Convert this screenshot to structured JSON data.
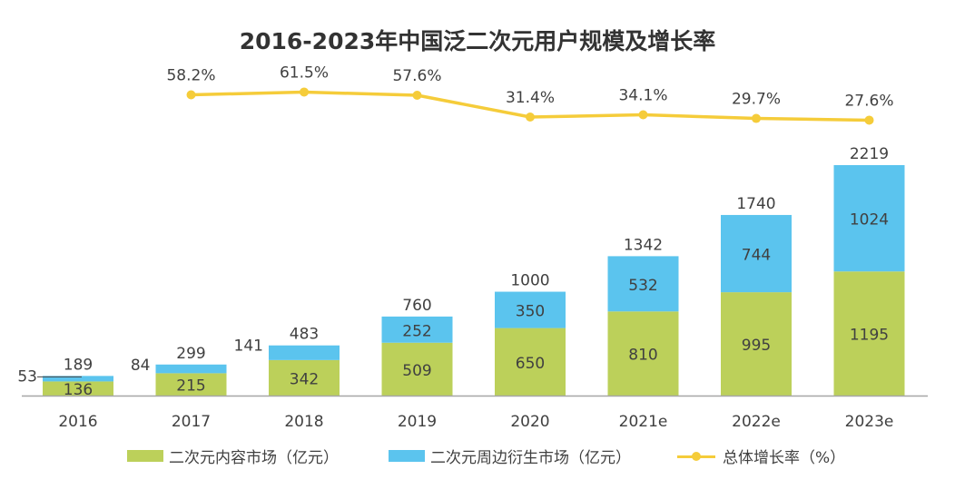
{
  "chart_data": {
    "type": "bar",
    "stacked": true,
    "title": "2016-2023年中国泛二次元用户规模及增长率",
    "categories": [
      "2016",
      "2017",
      "2018",
      "2019",
      "2020",
      "2021e",
      "2022e",
      "2023e"
    ],
    "series": [
      {
        "name": "二次元内容市场（亿元）",
        "kind": "bar",
        "color": "#BCD05A",
        "values": [
          136,
          215,
          342,
          509,
          650,
          810,
          995,
          1195
        ]
      },
      {
        "name": "二次元周边衍生市场（亿元）",
        "kind": "bar",
        "color": "#5BC4EE",
        "values": [
          53,
          84,
          141,
          252,
          350,
          532,
          744,
          1024
        ]
      },
      {
        "name": "总体增长率（%）",
        "kind": "line",
        "color": "#F5CC3A",
        "values": [
          null,
          58.2,
          61.5,
          57.6,
          31.4,
          34.1,
          29.7,
          27.6
        ],
        "labels": [
          "",
          "58.2%",
          "61.5%",
          "57.6%",
          "31.4%",
          "34.1%",
          "29.7%",
          "27.6%"
        ]
      }
    ],
    "totals": [
      189,
      299,
      483,
      760,
      1000,
      1342,
      1740,
      2219
    ],
    "ylim": [
      0,
      2219
    ],
    "legend_position": "bottom",
    "xlabel": "",
    "ylabel": ""
  }
}
